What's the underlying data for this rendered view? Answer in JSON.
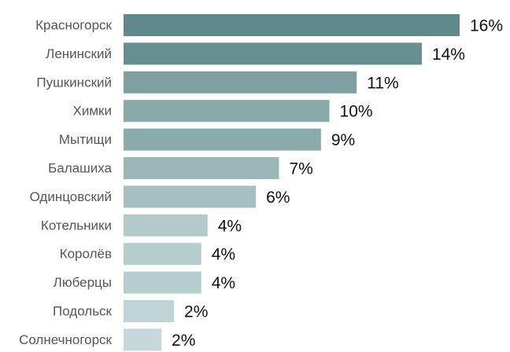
{
  "chart_data": {
    "type": "bar",
    "orientation": "horizontal",
    "categories": [
      "Красногорск",
      "Ленинский",
      "Пушкинский",
      "Химки",
      "Мытищи",
      "Балашиха",
      "Одинцовский",
      "Котельники",
      "Королёв",
      "Люберцы",
      "Подольск",
      "Солнечногорск"
    ],
    "values": [
      16,
      14.2,
      11.1,
      9.8,
      9.4,
      7.4,
      6.3,
      4.0,
      3.7,
      3.7,
      2.4,
      1.8
    ],
    "value_labels": [
      "16%",
      "14%",
      "11%",
      "10%",
      "9%",
      "7%",
      "6%",
      "4%",
      "4%",
      "4%",
      "2%",
      "2%"
    ],
    "colors": [
      "#5f8a8b",
      "#65908f",
      "#7ea0a2",
      "#88a9aa",
      "#8aabac",
      "#9bb7b8",
      "#a6bfc0",
      "#b3cacb",
      "#b6cdce",
      "#b6cdce",
      "#bfd4d5",
      "#c5d9da"
    ]
  }
}
